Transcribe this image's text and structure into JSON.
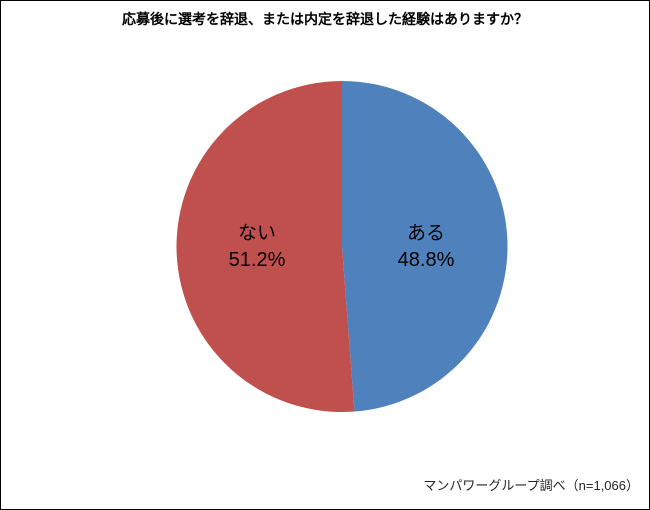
{
  "chart_data": {
    "type": "pie",
    "title": "応募後に選考を辞退、または内定を辞退した経験はありますか？",
    "start_angle": "top",
    "direction": "clockwise",
    "legend_position": "none",
    "labels_inside_slices": true,
    "slices": [
      {
        "label": "ある",
        "value": 48.8,
        "display_value": "48.8%",
        "color": "#4F81BD"
      },
      {
        "label": "ない",
        "value": 51.2,
        "display_value": "51.2%",
        "color": "#C0504D"
      }
    ],
    "source": "マンパワーグループ調べ（n=1,066）",
    "colors": {
      "slice_aru": "#4F81BD",
      "slice_nai": "#C0504D",
      "text": "#000000",
      "background": "#FFFFFF",
      "border": "#000000"
    }
  }
}
